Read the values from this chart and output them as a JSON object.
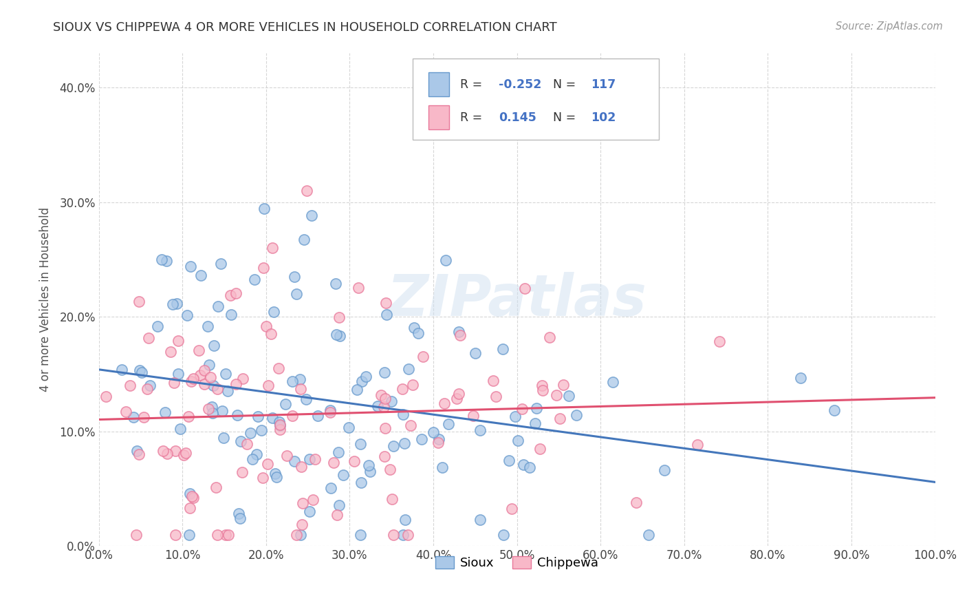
{
  "title": "SIOUX VS CHIPPEWA 4 OR MORE VEHICLES IN HOUSEHOLD CORRELATION CHART",
  "source": "Source: ZipAtlas.com",
  "xlabel": "",
  "ylabel": "4 or more Vehicles in Household",
  "xlim": [
    0.0,
    1.0
  ],
  "ylim": [
    0.0,
    0.43
  ],
  "xticks": [
    0.0,
    0.1,
    0.2,
    0.3,
    0.4,
    0.5,
    0.6,
    0.7,
    0.8,
    0.9,
    1.0
  ],
  "yticks": [
    0.0,
    0.1,
    0.2,
    0.3,
    0.4
  ],
  "sioux_color_fill": "#aac8e8",
  "sioux_color_edge": "#6699cc",
  "chippewa_color_fill": "#f8b8c8",
  "chippewa_color_edge": "#e8789a",
  "sioux_line_color": "#4477bb",
  "chippewa_line_color": "#e05070",
  "sioux_R": -0.252,
  "sioux_N": 117,
  "chippewa_R": 0.145,
  "chippewa_N": 102,
  "watermark": "ZIPatlas",
  "legend_label_sioux": "Sioux",
  "legend_label_chippewa": "Chippewa",
  "background_color": "#ffffff",
  "grid_color": "#cccccc",
  "title_color": "#333333",
  "axis_label_color": "#555555",
  "legend_r1_val": "-0.252",
  "legend_r2_val": "0.145",
  "legend_n1_val": "117",
  "legend_n2_val": "102",
  "legend_text_color": "#4472c4",
  "legend_label_color": "#333333"
}
